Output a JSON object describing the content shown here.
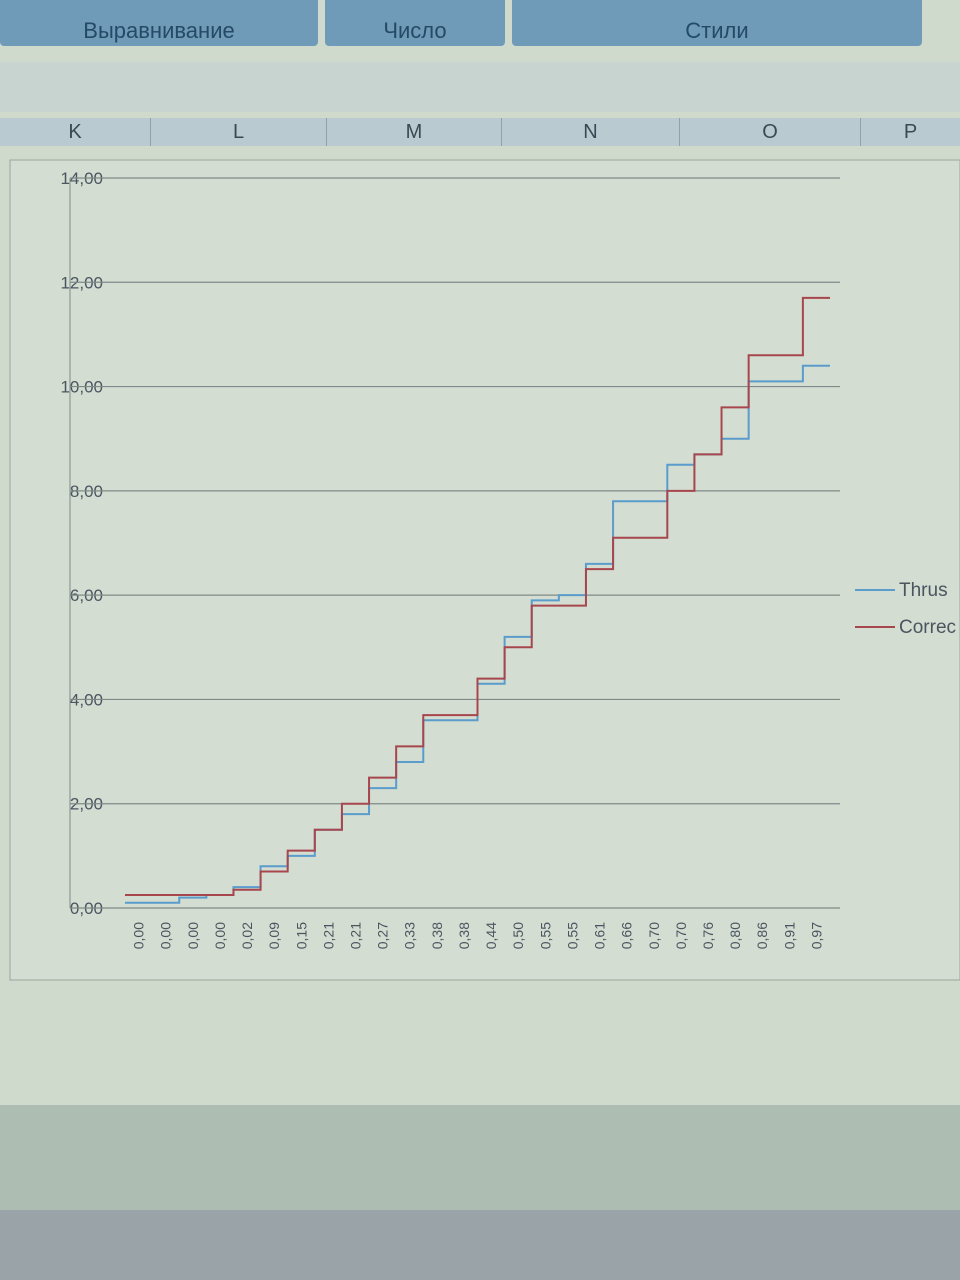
{
  "ribbon": [
    "Выравнивание",
    "Число",
    "Стили"
  ],
  "columns": [
    "K",
    "L",
    "M",
    "N",
    "O",
    "P"
  ],
  "chart_data": {
    "type": "line",
    "step": true,
    "categories": [
      "0,00",
      "0,00",
      "0,00",
      "0,00",
      "0,02",
      "0,09",
      "0,15",
      "0,21",
      "0,21",
      "0,27",
      "0,33",
      "0,38",
      "0,38",
      "0,44",
      "0,50",
      "0,55",
      "0,55",
      "0,61",
      "0,66",
      "0,70",
      "0,70",
      "0,76",
      "0,80",
      "0,86",
      "0,91",
      "0,97"
    ],
    "series": [
      {
        "name": "Thrus",
        "color": "#5a9ccc",
        "values": [
          0.1,
          0.1,
          0.2,
          0.25,
          0.4,
          0.8,
          1.0,
          1.5,
          1.8,
          2.3,
          2.8,
          3.6,
          3.6,
          4.3,
          5.2,
          5.9,
          6.0,
          6.6,
          7.8,
          7.8,
          8.5,
          8.7,
          9.0,
          10.1,
          10.1,
          10.4
        ]
      },
      {
        "name": "Correc",
        "color": "#a8464e",
        "values": [
          0.25,
          0.25,
          0.25,
          0.25,
          0.35,
          0.7,
          1.1,
          1.5,
          2.0,
          2.5,
          3.1,
          3.7,
          3.7,
          4.4,
          5.0,
          5.8,
          5.8,
          6.5,
          7.1,
          7.1,
          8.0,
          8.7,
          9.6,
          10.6,
          10.6,
          11.7
        ]
      }
    ],
    "ylim": [
      0,
      14
    ],
    "yticks": [
      {
        "value": 0,
        "label": "0,00"
      },
      {
        "value": 2,
        "label": "2,00"
      },
      {
        "value": 4,
        "label": "4,00"
      },
      {
        "value": 6,
        "label": "6,00"
      },
      {
        "value": 8,
        "label": "8,00"
      },
      {
        "value": 10,
        "label": "10,00"
      },
      {
        "value": 12,
        "label": "12,00"
      },
      {
        "value": 14,
        "label": "14,00"
      }
    ],
    "grid": true,
    "legend": "right"
  }
}
